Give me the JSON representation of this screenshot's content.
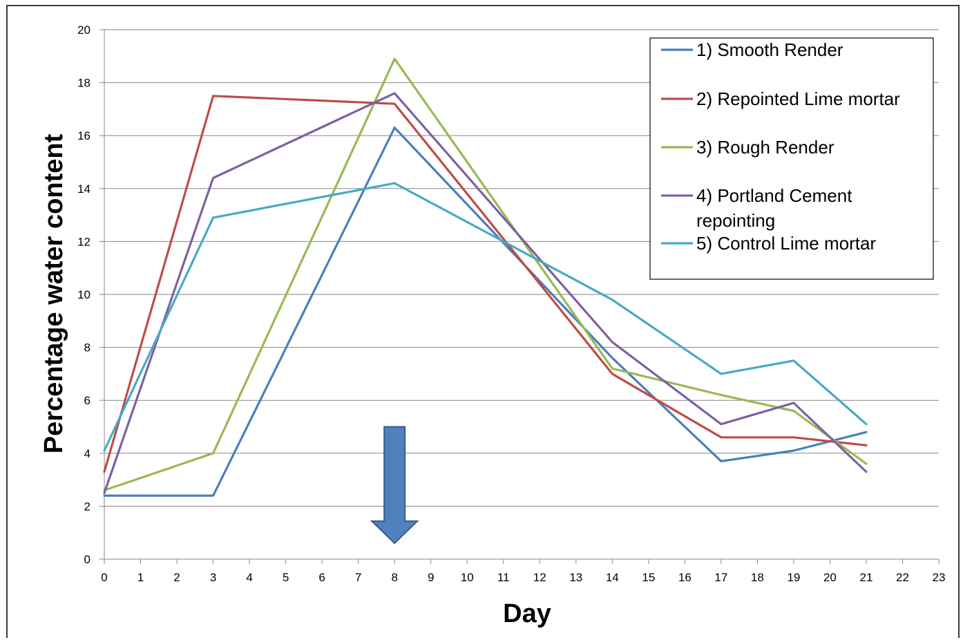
{
  "chart_data": {
    "type": "line",
    "title": "",
    "xlabel": "Day",
    "ylabel": "Percentage water content",
    "xlim": [
      0,
      23
    ],
    "ylim": [
      0,
      20
    ],
    "x_ticks": [
      0,
      1,
      2,
      3,
      4,
      5,
      6,
      7,
      8,
      9,
      10,
      11,
      12,
      13,
      14,
      15,
      16,
      17,
      18,
      19,
      20,
      21,
      22,
      23
    ],
    "y_ticks": [
      0,
      2,
      4,
      6,
      8,
      10,
      12,
      14,
      16,
      18,
      20
    ],
    "grid": "horizontal",
    "legend_position": "top-right",
    "series": [
      {
        "name": "1) Smooth Render",
        "color": "#4a7ebb",
        "x": [
          0,
          3,
          8,
          14,
          17,
          19,
          21
        ],
        "y": [
          2.4,
          2.4,
          16.3,
          7.6,
          3.7,
          4.1,
          4.8
        ]
      },
      {
        "name": "2) Repointed Lime mortar",
        "color": "#be4b48",
        "x": [
          0,
          3,
          8,
          14,
          17,
          19,
          21
        ],
        "y": [
          3.3,
          17.5,
          17.2,
          7.0,
          4.6,
          4.6,
          4.3
        ]
      },
      {
        "name": "3) Rough Render",
        "color": "#98b954",
        "x": [
          0,
          3,
          8,
          14,
          17,
          19,
          21
        ],
        "y": [
          2.6,
          4.0,
          18.9,
          7.2,
          6.2,
          5.6,
          3.6
        ]
      },
      {
        "name": "4) Portland Cement repointing",
        "name_lines": [
          "4) Portland Cement",
          "repointing"
        ],
        "color": "#7d60a0",
        "x": [
          0,
          3,
          8,
          14,
          17,
          19,
          21
        ],
        "y": [
          2.5,
          14.4,
          17.6,
          8.2,
          5.1,
          5.9,
          3.3
        ]
      },
      {
        "name": "5) Control Lime mortar",
        "color": "#46aac5",
        "x": [
          0,
          3,
          8,
          14,
          17,
          19,
          21
        ],
        "y": [
          4.1,
          12.9,
          14.2,
          9.8,
          7.0,
          7.5,
          5.1
        ]
      }
    ],
    "annotations": [
      {
        "type": "arrow",
        "direction": "down",
        "x": 8,
        "y_from": 5,
        "y_to": 0.6,
        "color": "#4f81bd"
      }
    ]
  }
}
